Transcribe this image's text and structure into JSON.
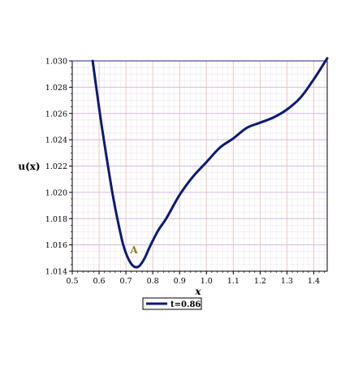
{
  "chart_data": {
    "type": "line",
    "xlabel": "x",
    "ylabel": "u(x)",
    "xlim": [
      0.5,
      1.45
    ],
    "ylim": [
      1.014,
      1.03
    ],
    "xticks": [
      0.5,
      0.6,
      0.7,
      0.8,
      0.9,
      1.0,
      1.1,
      1.2,
      1.3,
      1.4
    ],
    "yticks": [
      1.014,
      1.016,
      1.018,
      1.02,
      1.022,
      1.024,
      1.026,
      1.028,
      1.03
    ],
    "xtick_labels": [
      "0.5",
      "0.6",
      "0.7",
      "0.8",
      "0.9",
      "1.0",
      "1.1",
      "1.2",
      "1.3",
      "1.4"
    ],
    "ytick_labels": [
      "1.014",
      "1.016",
      "1.018",
      "1.020",
      "1.022",
      "1.024",
      "1.026",
      "1.028",
      "1.030"
    ],
    "grid": true,
    "series": [
      {
        "name": "t=0.86",
        "color": "#0a1a78",
        "x": [
          0.576,
          0.59,
          0.61,
          0.63,
          0.65,
          0.67,
          0.69,
          0.71,
          0.73,
          0.75,
          0.77,
          0.79,
          0.82,
          0.85,
          0.9,
          0.95,
          1.0,
          1.05,
          1.1,
          1.15,
          1.2,
          1.25,
          1.3,
          1.35,
          1.4,
          1.45
        ],
        "y": [
          1.03,
          1.0279,
          1.025,
          1.0224,
          1.0199,
          1.0178,
          1.016,
          1.0149,
          1.01435,
          1.0144,
          1.015,
          1.0159,
          1.0171,
          1.018,
          1.0198,
          1.0212,
          1.0223,
          1.0234,
          1.0241,
          1.0249,
          1.0253,
          1.0257,
          1.0263,
          1.0272,
          1.0286,
          1.0302
        ]
      }
    ],
    "annotations": [
      {
        "text": "A",
        "x": 0.73,
        "y": 1.0151
      }
    ],
    "legend": {
      "position": "bottom-left",
      "entries": [
        "t=0.86"
      ]
    }
  }
}
